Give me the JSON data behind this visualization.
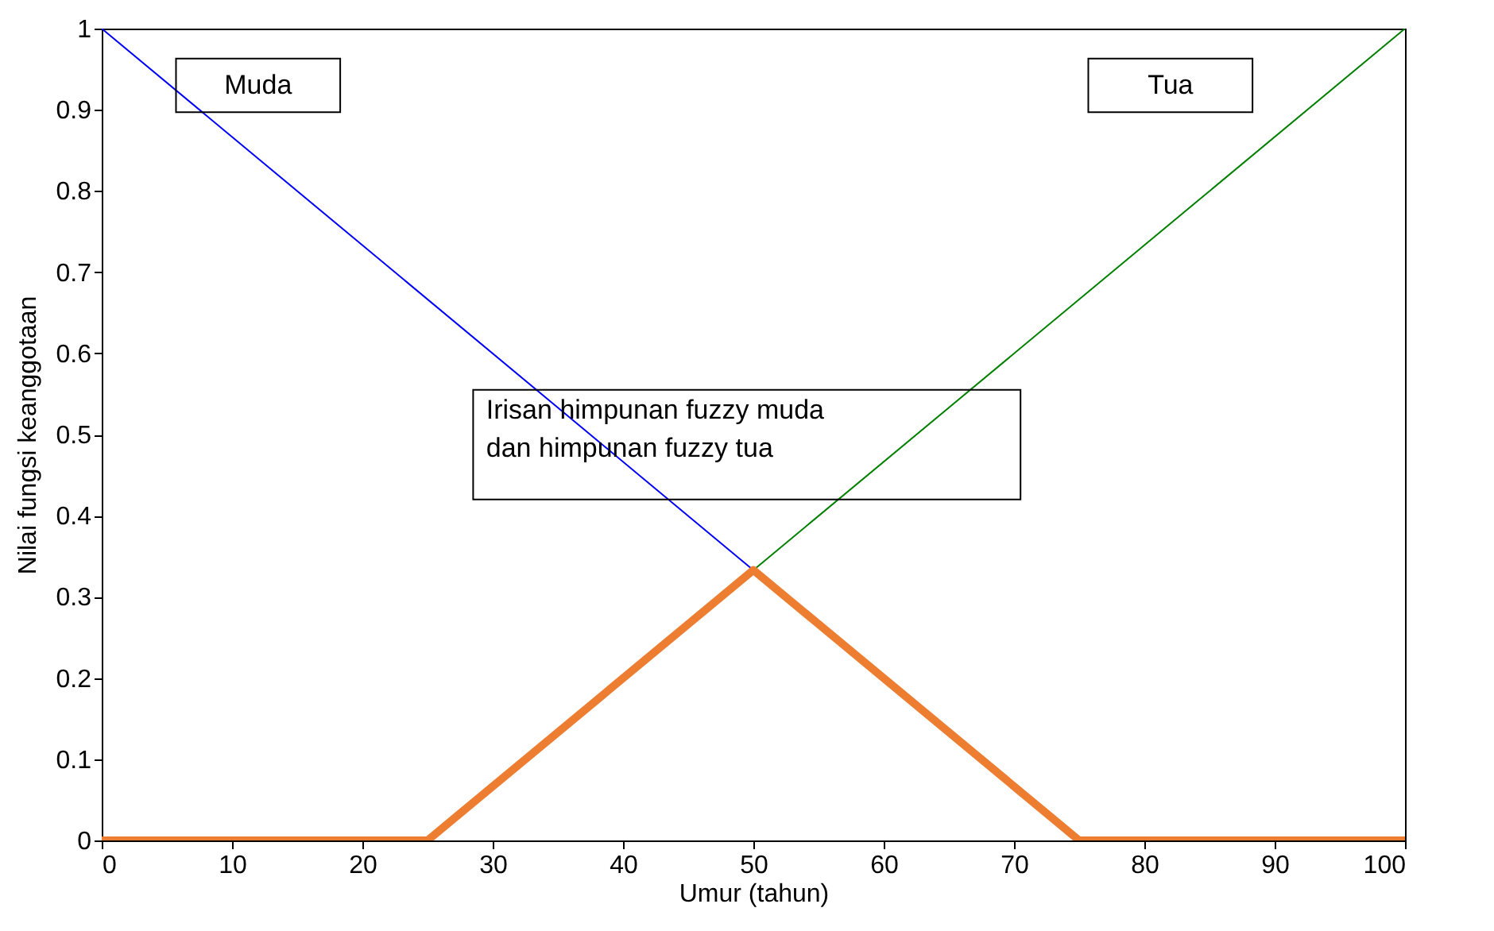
{
  "chart_data": {
    "type": "line",
    "xlabel": "Umur (tahun)",
    "ylabel": "Nilai fungsi keanggotaan",
    "xlim": [
      0,
      100
    ],
    "xticks": [
      0,
      10,
      20,
      30,
      40,
      50,
      60,
      70,
      80,
      90,
      100
    ],
    "ylim": [
      0,
      1
    ],
    "yticks": [
      0,
      0.1,
      0.2,
      0.3,
      0.4,
      0.5,
      0.6,
      0.7,
      0.8,
      0.9,
      1
    ],
    "series": [
      {
        "name": "Muda",
        "color": "#0000ff",
        "x": [
          0,
          50
        ],
        "values": [
          1,
          0.333
        ]
      },
      {
        "name": "Tua",
        "color": "#008000",
        "x": [
          50,
          100
        ],
        "values": [
          0.333,
          1
        ]
      },
      {
        "color": "#ed7d31",
        "x": [
          0,
          25,
          50,
          75,
          100
        ],
        "values": [
          0,
          0,
          0.333,
          0,
          0
        ]
      }
    ],
    "annotations": [
      "Irisan himpunan fuzzy muda\ndan himpunan fuzzy tua"
    ],
    "grid": false,
    "legend": false,
    "marker": "none",
    "line_style": "solid"
  }
}
